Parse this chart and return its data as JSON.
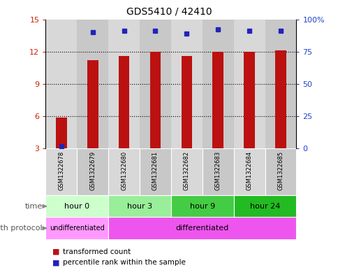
{
  "title": "GDS5410 / 42410",
  "samples": [
    "GSM1322678",
    "GSM1322679",
    "GSM1322680",
    "GSM1322681",
    "GSM1322682",
    "GSM1322683",
    "GSM1322684",
    "GSM1322685"
  ],
  "transformed_counts": [
    5.9,
    11.2,
    11.6,
    12.0,
    11.6,
    12.0,
    12.0,
    12.1
  ],
  "percentile_ranks": [
    2,
    90,
    91,
    91,
    89,
    92,
    91,
    91
  ],
  "ylim_left": [
    3,
    15
  ],
  "yticks_left": [
    3,
    6,
    9,
    12,
    15
  ],
  "ylim_right": [
    0,
    100
  ],
  "yticks_right": [
    0,
    25,
    50,
    75,
    100
  ],
  "bar_color": "#bb1111",
  "dot_color": "#2222bb",
  "grid_color": "#000000",
  "time_group_defs": [
    [
      0,
      1,
      "hour 0",
      "#ccffcc"
    ],
    [
      2,
      3,
      "hour 3",
      "#99ee99"
    ],
    [
      4,
      5,
      "hour 9",
      "#44cc44"
    ],
    [
      6,
      7,
      "hour 24",
      "#22bb22"
    ]
  ],
  "prot_defs": [
    [
      0,
      1,
      "undifferentiated",
      "#ff99ff"
    ],
    [
      2,
      7,
      "differentiated",
      "#ee55ee"
    ]
  ],
  "legend_items": [
    {
      "label": "transformed count",
      "color": "#bb1111"
    },
    {
      "label": "percentile rank within the sample",
      "color": "#2222bb"
    }
  ],
  "xlabel_time": "time",
  "xlabel_protocol": "growth protocol",
  "bg_color": "#ffffff",
  "col_even": "#d8d8d8",
  "col_odd": "#c8c8c8"
}
